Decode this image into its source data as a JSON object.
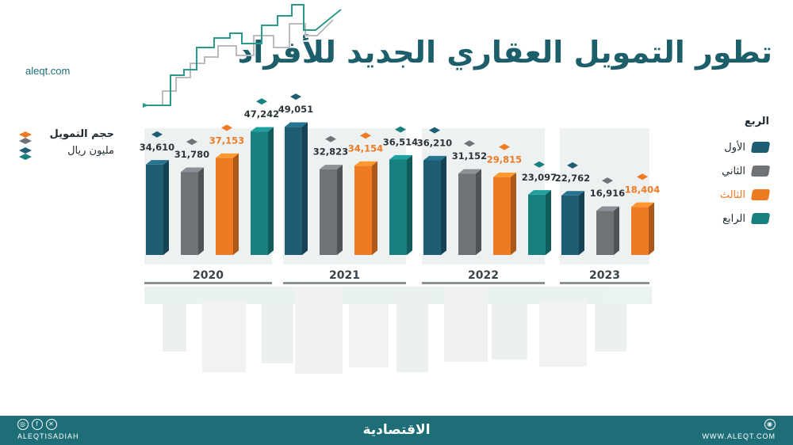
{
  "title": "تطور التمويل العقاري الجديد للأفراد",
  "site_url": "aleqt.com",
  "unit": {
    "line1": "حجم التمويل",
    "line2": "مليون ريال"
  },
  "legend": {
    "heading": "الربع",
    "items": [
      {
        "label": "الأول",
        "color": "#1f5d73"
      },
      {
        "label": "الثاني",
        "color": "#6e7377"
      },
      {
        "label": "الثالث",
        "color": "#ef7a24"
      },
      {
        "label": "الرابع",
        "color": "#17807e"
      }
    ]
  },
  "footer": {
    "left_handle": "ALEQTISADIAH",
    "brand": "الاقتصادية",
    "right_url": "WWW.ALEQT.COM",
    "icons": [
      "instagram-icon",
      "facebook-icon",
      "x-icon"
    ]
  },
  "chart_data": {
    "type": "bar",
    "categories": [
      "2020",
      "2021",
      "2022",
      "2023"
    ],
    "series": [
      {
        "name": "الأول",
        "values": [
          34610,
          49051,
          36210,
          22762
        ]
      },
      {
        "name": "الثاني",
        "values": [
          31780,
          32823,
          31152,
          16916
        ]
      },
      {
        "name": "الثالث",
        "values": [
          37153,
          34154,
          29815,
          18404
        ]
      },
      {
        "name": "الرابع",
        "values": [
          47242,
          36514,
          23097,
          null
        ]
      }
    ],
    "labels": [
      [
        "34,610",
        "31,780",
        "37,153",
        "47,242"
      ],
      [
        "49,051",
        "32,823",
        "34,154",
        "36,514"
      ],
      [
        "36,210",
        "31,152",
        "29,815",
        "23,097"
      ],
      [
        "22,762",
        "16,916",
        "18,404",
        ""
      ]
    ],
    "colors": [
      "#1f5d73",
      "#6e7377",
      "#ef7a24",
      "#17807e"
    ],
    "ylim": [
      0,
      50000
    ],
    "legend_position": "right"
  }
}
